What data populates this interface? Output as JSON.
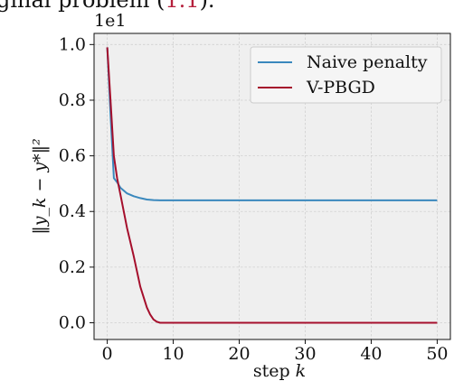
{
  "header_text_fragment": "ginal problem (",
  "header_ref": "1.1",
  "header_tail": ").",
  "colors": {
    "ref": "#b5203c",
    "naive": "#3a88bd",
    "vpbgd": "#a50f2c",
    "axes_bg": "#efefef",
    "grid": "#d0d0d0"
  },
  "chart_data": {
    "type": "line",
    "xlabel_prefix": "step ",
    "xlabel_var": "k",
    "ylabel": "‖y_k − y*‖²",
    "scale_label": "1e1",
    "xlim": [
      -2,
      52
    ],
    "ylim": [
      -0.06,
      1.04
    ],
    "xticks": [
      0,
      10,
      20,
      30,
      40,
      50
    ],
    "yticks": [
      0.0,
      0.2,
      0.4,
      0.6,
      0.8,
      1.0
    ],
    "xtick_labels": [
      "0",
      "10",
      "20",
      "30",
      "40",
      "50"
    ],
    "ytick_labels": [
      "0.0",
      "0.2",
      "0.4",
      "0.6",
      "0.8",
      "1.0"
    ],
    "grid": true,
    "legend_position": "top-right",
    "series": [
      {
        "name": "Naive penalty",
        "x": [
          0,
          0.5,
          1,
          1.5,
          2,
          3,
          4,
          5,
          6,
          7,
          8,
          10,
          15,
          20,
          30,
          40,
          50
        ],
        "y": [
          0.99,
          0.75,
          0.52,
          0.505,
          0.485,
          0.465,
          0.455,
          0.448,
          0.443,
          0.441,
          0.44,
          0.44,
          0.44,
          0.44,
          0.44,
          0.44,
          0.44
        ]
      },
      {
        "name": "V-PBGD",
        "x": [
          0,
          0.5,
          1,
          1.5,
          2,
          3,
          4,
          5,
          6,
          6.5,
          7,
          7.5,
          8,
          9,
          10,
          20,
          30,
          40,
          50
        ],
        "y": [
          0.99,
          0.8,
          0.6,
          0.52,
          0.46,
          0.34,
          0.24,
          0.13,
          0.055,
          0.03,
          0.012,
          0.004,
          0.0,
          0.0,
          0.0,
          0.0,
          0.0,
          0.0,
          0.0
        ]
      }
    ]
  }
}
